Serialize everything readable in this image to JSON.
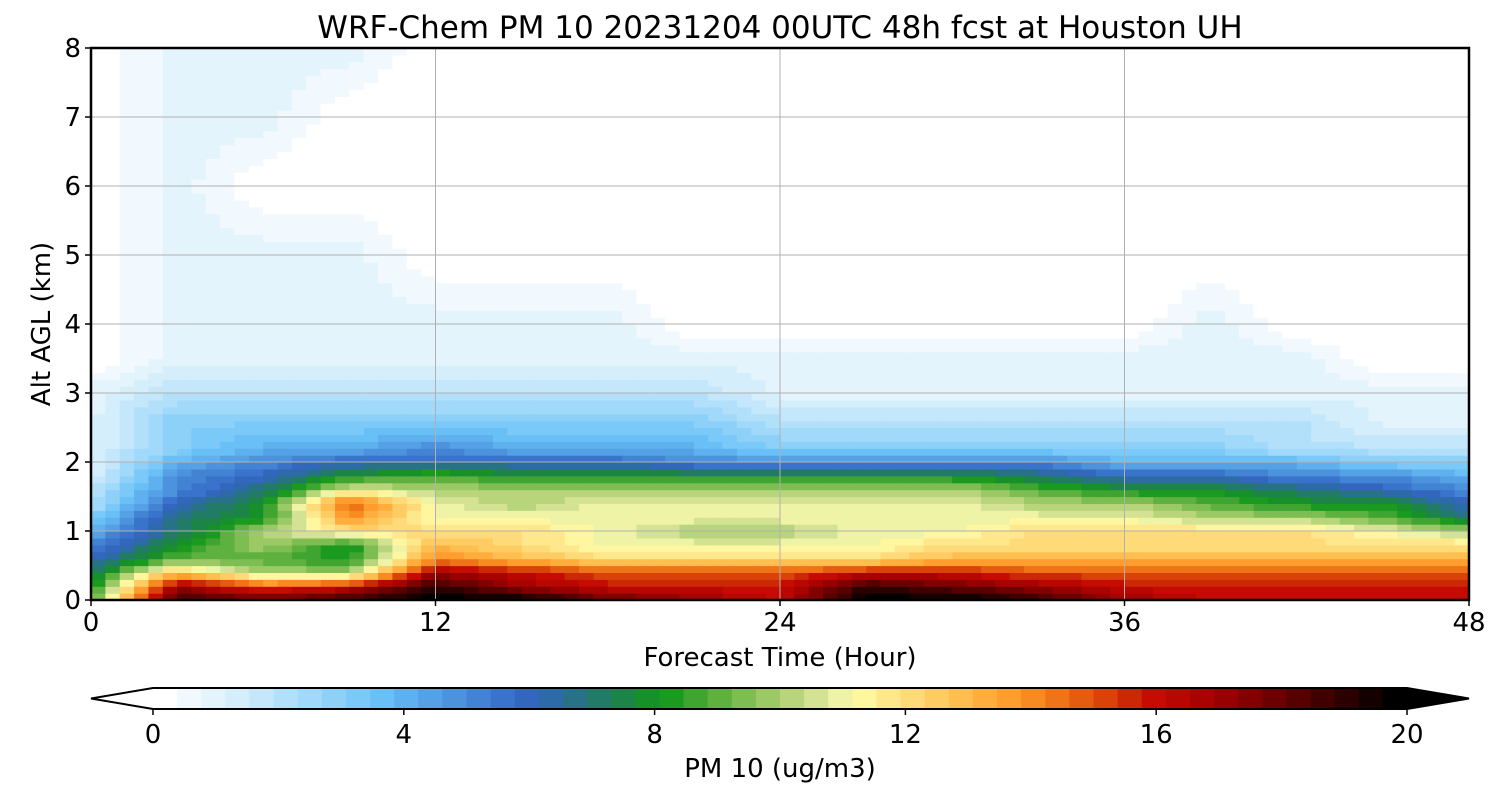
{
  "chart_data": {
    "type": "heatmap",
    "title": "WRF-Chem PM 10  20231204 00UTC 48h fcst at Houston UH",
    "xlabel": "Forecast Time (Hour)",
    "ylabel": "Alt AGL (km)",
    "xlim": [
      0,
      48
    ],
    "ylim": [
      0,
      8
    ],
    "x_ticks": [
      "0",
      "12",
      "24",
      "36",
      "48"
    ],
    "y_ticks": [
      "0",
      "1",
      "2",
      "3",
      "4",
      "5",
      "6",
      "7",
      "8"
    ],
    "grid": true,
    "colorbar": {
      "label": "PM 10  (ug/m3)",
      "vmin": 0,
      "vmax": 20,
      "ticks": [
        "0",
        "4",
        "8",
        "12",
        "16",
        "20"
      ],
      "extend": "both",
      "colors": [
        "#ffffff",
        "#f2f9fe",
        "#e4f4fd",
        "#d5eefc",
        "#c4e7fb",
        "#b2e0fa",
        "#a0d9fa",
        "#8dd1f9",
        "#7bc9f8",
        "#69c0f7",
        "#5fb0ef",
        "#55a1e6",
        "#4c92dd",
        "#4383d4",
        "#3a73cb",
        "#3366bd",
        "#2d6aa8",
        "#277287",
        "#217b66",
        "#1c8446",
        "#17902a",
        "#1a9a1f",
        "#3fa530",
        "#5fb13f",
        "#7dbd52",
        "#9bc966",
        "#b8d57c",
        "#d3e393",
        "#eef3a6",
        "#fff6a0",
        "#ffe88c",
        "#ffda78",
        "#ffcc63",
        "#ffbe50",
        "#ffae3d",
        "#ff9d2e",
        "#f88a22",
        "#ef7417",
        "#e45c0f",
        "#d94309",
        "#cd2805",
        "#c50b02",
        "#b80600",
        "#a80300",
        "#960000",
        "#820000",
        "#6c0000",
        "#560000",
        "#400000",
        "#2a0000",
        "#150000",
        "#000000"
      ]
    },
    "values_note_hours": [
      0,
      3,
      6,
      9,
      12,
      15,
      18,
      21,
      24,
      27,
      30,
      33,
      36,
      39,
      42,
      45,
      48
    ],
    "alt_km": [
      0.0,
      0.2,
      0.4,
      0.6,
      0.8,
      1.0,
      1.2,
      1.4,
      1.6,
      1.8,
      2.0,
      2.2,
      2.6,
      3.0,
      3.5,
      4.0,
      5.0,
      6.0,
      7.0,
      8.0
    ],
    "values": [
      [
        9,
        19,
        18,
        19,
        20,
        20,
        18,
        17,
        16,
        20,
        20,
        19,
        17,
        16,
        16,
        16,
        16
      ],
      [
        8,
        17,
        15,
        16,
        19,
        17,
        16,
        16,
        16,
        19,
        18,
        17,
        16,
        16,
        16,
        16,
        16
      ],
      [
        7,
        13,
        10,
        10,
        17,
        16,
        15,
        15,
        15,
        16,
        16,
        15,
        15,
        15,
        15,
        15,
        15
      ],
      [
        6,
        9,
        9,
        8,
        14,
        13,
        12,
        12,
        12,
        12,
        13,
        13,
        13,
        13,
        13,
        13,
        13
      ],
      [
        5,
        8,
        10,
        8,
        13,
        12,
        11,
        11,
        11,
        11,
        12,
        12,
        12,
        12,
        12,
        12,
        12
      ],
      [
        4,
        7,
        10,
        12,
        12,
        12,
        11,
        10,
        10,
        11,
        11,
        12,
        12,
        12,
        12,
        11,
        10
      ],
      [
        3,
        7,
        8,
        14,
        11,
        11,
        11,
        11,
        11,
        11,
        11,
        11,
        11,
        10,
        10,
        9,
        7
      ],
      [
        2,
        6,
        8,
        15,
        11,
        10,
        11,
        11,
        11,
        11,
        11,
        10,
        10,
        9,
        8,
        8,
        6
      ],
      [
        2,
        5,
        7,
        11,
        10,
        10,
        10,
        10,
        10,
        10,
        10,
        9,
        8,
        8,
        7,
        6,
        5
      ],
      [
        1,
        5,
        6,
        8,
        9,
        8,
        8,
        8,
        8,
        8,
        8,
        7,
        6,
        6,
        5,
        5,
        4
      ],
      [
        1,
        4,
        5,
        6,
        6,
        6,
        6,
        5,
        5,
        5,
        5,
        5,
        4,
        4,
        4,
        3,
        3
      ],
      [
        1,
        3,
        4,
        4,
        5,
        4,
        4,
        4,
        3,
        3,
        3,
        3,
        3,
        3,
        2,
        2,
        2
      ],
      [
        1,
        3,
        3,
        3,
        3,
        3,
        3,
        3,
        2,
        2,
        2,
        2,
        2,
        2,
        2,
        1,
        1
      ],
      [
        1,
        2,
        2,
        2,
        2,
        2,
        2,
        2,
        1,
        1,
        1,
        1,
        1,
        1,
        1,
        1,
        1
      ],
      [
        0,
        1,
        1,
        1,
        1,
        1,
        1,
        1,
        1,
        1,
        1,
        1,
        1,
        1,
        1,
        0,
        0
      ],
      [
        0,
        1,
        1,
        1,
        1,
        1,
        1,
        0,
        0,
        0,
        0,
        0,
        0,
        1,
        0,
        0,
        0
      ],
      [
        0,
        1,
        1,
        1,
        0,
        0,
        0,
        0,
        0,
        0,
        0,
        0,
        0,
        0,
        0,
        0,
        0
      ],
      [
        0,
        1,
        0,
        0,
        0,
        0,
        0,
        0,
        0,
        0,
        0,
        0,
        0,
        0,
        0,
        0,
        0
      ],
      [
        0,
        1,
        1,
        0,
        0,
        0,
        0,
        0,
        0,
        0,
        0,
        0,
        0,
        0,
        0,
        0,
        0
      ],
      [
        0,
        1,
        1,
        1,
        0,
        0,
        0,
        0,
        0,
        0,
        0,
        0,
        0,
        0,
        0,
        0,
        0
      ]
    ]
  }
}
